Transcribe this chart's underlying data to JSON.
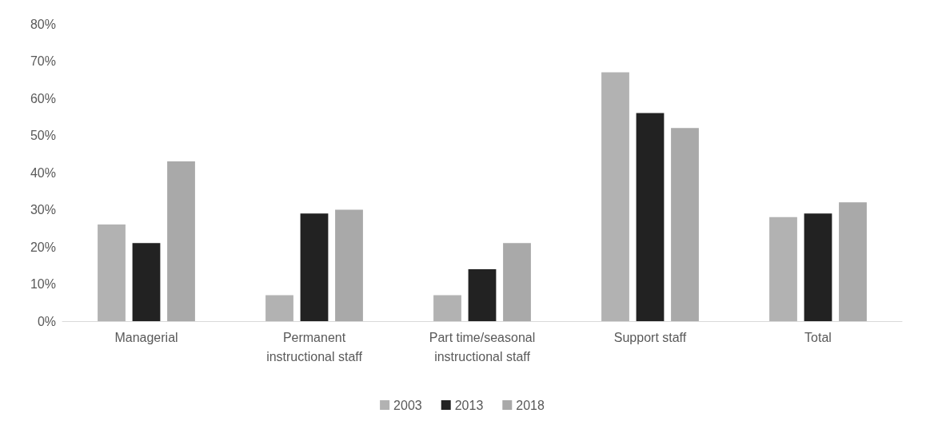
{
  "chart_data": {
    "type": "bar",
    "categories": [
      "Managerial",
      "Permanent instructional staff",
      "Part time/seasonal instructional staff",
      "Support staff",
      "Total"
    ],
    "series": [
      {
        "name": "2003",
        "color": "#b2b2b2",
        "values": [
          26,
          7,
          7,
          67,
          28
        ]
      },
      {
        "name": "2013",
        "color": "#222222",
        "values": [
          21,
          29,
          14,
          56,
          29
        ]
      },
      {
        "name": "2018",
        "color": "#a9a9a9",
        "values": [
          43,
          30,
          21,
          52,
          32
        ]
      }
    ],
    "ylim": [
      0,
      80
    ],
    "yticks": [
      {
        "value": 0,
        "label": "0%"
      },
      {
        "value": 10,
        "label": "10%"
      },
      {
        "value": 20,
        "label": "20%"
      },
      {
        "value": 30,
        "label": "30%"
      },
      {
        "value": 40,
        "label": "40%"
      },
      {
        "value": 50,
        "label": "50%"
      },
      {
        "value": 60,
        "label": "60%"
      },
      {
        "value": 70,
        "label": "70%"
      },
      {
        "value": 80,
        "label": "80%"
      }
    ],
    "grid": false,
    "legend": "bottom"
  }
}
